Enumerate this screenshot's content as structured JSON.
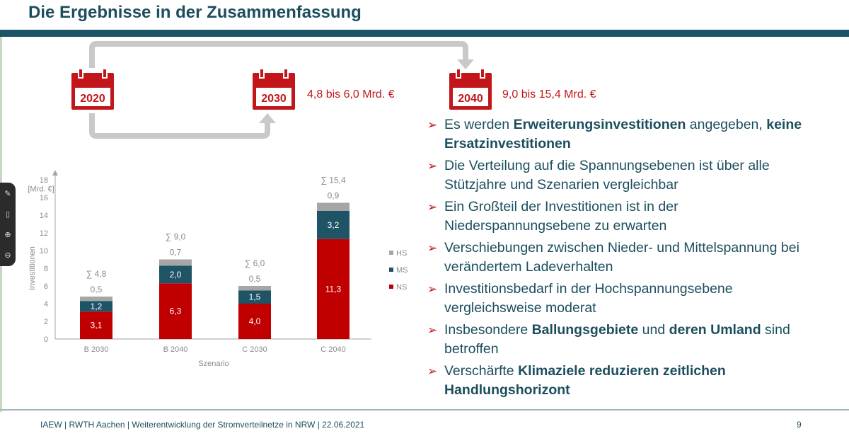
{
  "title": "Die Ergebnisse in der Zusammenfassung",
  "timeline": {
    "years": [
      {
        "year": "2020",
        "value": ""
      },
      {
        "year": "2030",
        "value": "4,8 bis 6,0 Mrd. €"
      },
      {
        "year": "2040",
        "value": "9,0 bis 15,4 Mrd. €"
      }
    ]
  },
  "bullets": [
    [
      {
        "t": "Es werden ",
        "b": false
      },
      {
        "t": "Erweiterungsinvestitionen",
        "b": true
      },
      {
        "t": " angegeben, ",
        "b": false
      },
      {
        "t": "keine Ersatzinvestitionen",
        "b": true
      }
    ],
    [
      {
        "t": "Die Verteilung auf die Spannungsebenen ist über alle Stützjahre und Szenarien vergleichbar",
        "b": false
      }
    ],
    [
      {
        "t": "Ein Großteil der Investitionen ist in der Niederspannungsebene zu erwarten",
        "b": false
      }
    ],
    [
      {
        "t": "Verschiebungen zwischen Nieder- und Mittelspannung bei verändertem Ladeverhalten",
        "b": false
      }
    ],
    [
      {
        "t": "Investitionsbedarf in der Hochspannungsebene vergleichsweise moderat",
        "b": false
      }
    ],
    [
      {
        "t": "Insbesondere ",
        "b": false
      },
      {
        "t": "Ballungsgebiete",
        "b": true
      },
      {
        "t": " und ",
        "b": false
      },
      {
        "t": "deren Umland",
        "b": true
      },
      {
        "t": " sind betroffen",
        "b": false
      }
    ],
    [
      {
        "t": "Verschärfte ",
        "b": false
      },
      {
        "t": "Klimaziele reduzieren zeitlichen Handlungshorizont",
        "b": true
      }
    ]
  ],
  "chart_data": {
    "type": "bar",
    "stacked": true,
    "categories": [
      "B 2030",
      "B 2040",
      "C 2030",
      "C 2040"
    ],
    "series": [
      {
        "name": "NS",
        "values": [
          3.1,
          6.3,
          4.0,
          11.3
        ],
        "labels": [
          "3,1",
          "6,3",
          "4,0",
          "11,3"
        ],
        "color": "#c00000"
      },
      {
        "name": "MS",
        "values": [
          1.2,
          2.0,
          1.5,
          3.2
        ],
        "labels": [
          "1,2",
          "2,0",
          "1,5",
          "3,2"
        ],
        "color": "#1f5466"
      },
      {
        "name": "HS",
        "values": [
          0.5,
          0.7,
          0.5,
          0.9
        ],
        "labels": [
          "0,5",
          "0,7",
          "0,5",
          "0,9"
        ],
        "color": "#a6a6a6"
      }
    ],
    "totals": [
      "∑ 4,8",
      "∑ 9,0",
      "∑ 6,0",
      "∑ 15,4"
    ],
    "xlabel": "Szenario",
    "ylabel": "Investitionen",
    "yunit": "[Mrd. €]",
    "ylim": [
      0,
      18
    ],
    "yticks": [
      0,
      2,
      4,
      6,
      8,
      10,
      12,
      14,
      16,
      18
    ],
    "legend_order": [
      "HS",
      "MS",
      "NS"
    ],
    "legend_position": "right"
  },
  "footer": {
    "text": "IAEW | RWTH Aachen | Weiterentwicklung der Stromverteilnetze in NRW | 22.06.2021",
    "page": "9"
  },
  "toolbar": {
    "icons": [
      "pen-icon",
      "eraser-icon",
      "zoom-in-icon",
      "zoom-out-icon"
    ]
  }
}
